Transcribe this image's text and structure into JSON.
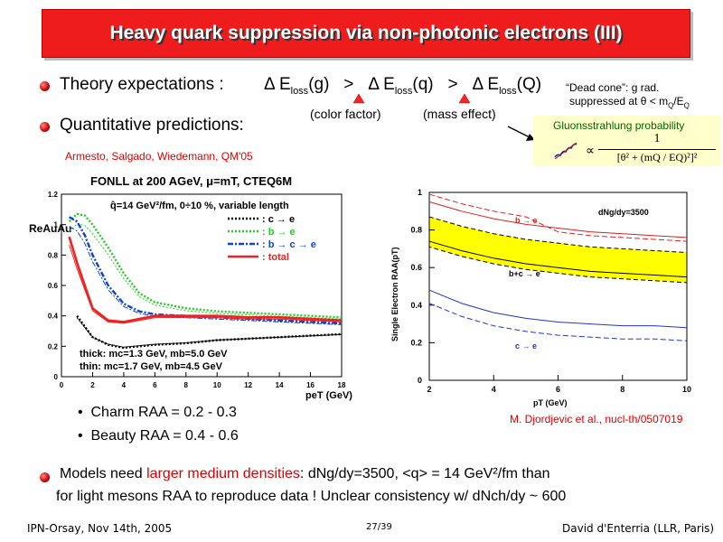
{
  "title": "Heavy quark suppression via non-photonic electrons (III)",
  "bullets": {
    "theory": "Theory expectations :",
    "quant": "Quantitative predictions:"
  },
  "eloss": {
    "delta": "Δ",
    "E": "E",
    "sub": "loss",
    "g": "(g)",
    "q": "(q)",
    "Q": "(Q)",
    "gt": ">",
    "color_factor": "(color factor)",
    "mass_effect": "(mass effect)"
  },
  "dead_cone": {
    "line1": "“Dead cone”: g rad.",
    "line2": "suppressed at θ < m",
    "q": "Q",
    "slash": "/E",
    "Q": "Q"
  },
  "gluon_box": {
    "title": "Gluonsstrahlung probability",
    "numerator": "1",
    "denominator": "[θ² + (mQ / EQ)²]²",
    "propto": "∝"
  },
  "citations": {
    "armesto": "Armesto, Salgado, Wiedemann, QM'05",
    "djordjevic": "M. Djordjevic et al., nucl-th/0507019"
  },
  "left_plot": {
    "title": "FONLL at 200 AGeV, μ=mT, CTEQ6M",
    "qhat": "q̂=14 GeV²/fm, 0÷10 %, variable length",
    "ylabel": "ReAuAu",
    "xlabel": "peT (GeV)",
    "legend": [
      {
        "label": ": c → e",
        "color": "#000000"
      },
      {
        "label": ": b → e",
        "color": "#22cc22"
      },
      {
        "label": ": b → c → e",
        "color": "#1144cc"
      },
      {
        "label": ": total",
        "color": "#ee2222"
      }
    ],
    "thick": "thick: mc=1.3 GeV, mb=5.0 GeV",
    "thin": "thin: mc=1.7 GeV, mb=4.5 GeV",
    "xticks": [
      "0",
      "2",
      "4",
      "6",
      "8",
      "10",
      "12",
      "14",
      "16",
      "18"
    ],
    "yticks": [
      "0",
      "0.2",
      "0.4",
      "0.6",
      "0.8",
      "1",
      "1.2"
    ]
  },
  "right_plot": {
    "ylabel": "Single Electron RAA(pT)",
    "xlabel": "pT (GeV)",
    "xticks": [
      "2",
      "4",
      "6",
      "8",
      "10"
    ],
    "yticks": [
      "0",
      "0.2",
      "0.4",
      "0.6",
      "0.8",
      "1"
    ],
    "dndy": "dNg/dy=3500",
    "b_e": "b → e",
    "bc_e": "b+c → e",
    "c_e": "c → e"
  },
  "results": {
    "charm": "Charm RAA = 0.2 - 0.3",
    "beauty": "Beauty RAA = 0.4 - 0.6"
  },
  "models": {
    "pre": "Models need ",
    "highlight": "larger medium densities",
    "post": ": dNg/dy=3500, <q> = 14 GeV²/fm than",
    "line2": "for light mesons RAA to reproduce data !  Unclear consistency w/ dNch/dy ~ 600"
  },
  "footer": {
    "left": "IPN-Orsay, Nov 14th, 2005",
    "center": "27/39",
    "right": "David d'Enterria (LLR, Paris)"
  },
  "chart_data": [
    {
      "type": "line",
      "title": "FONLL at 200 AGeV, μ=mT, CTEQ6M",
      "xlabel": "peT (GeV)",
      "ylabel": "ReAuAu",
      "xlim": [
        0,
        18
      ],
      "ylim": [
        0,
        1.2
      ],
      "series": [
        {
          "name": ": c → e",
          "x": [
            1,
            2,
            3,
            4,
            5,
            6,
            8,
            10,
            12,
            14,
            16,
            18
          ],
          "y": [
            0.4,
            0.26,
            0.21,
            0.19,
            0.2,
            0.21,
            0.22,
            0.24,
            0.25,
            0.26,
            0.27,
            0.28
          ]
        },
        {
          "name": ": b → e",
          "x": [
            0.5,
            1,
            1.5,
            2,
            3,
            4,
            5,
            6,
            8,
            10,
            12,
            14,
            16,
            18
          ],
          "y": [
            1.02,
            1.07,
            1.06,
            1.0,
            0.85,
            0.68,
            0.55,
            0.49,
            0.45,
            0.43,
            0.42,
            0.41,
            0.4,
            0.39
          ]
        },
        {
          "name": ": b → c → e",
          "x": [
            0.5,
            1,
            1.5,
            2,
            3,
            4,
            5,
            6,
            8,
            10,
            12,
            14,
            16,
            18
          ],
          "y": [
            1.05,
            1.02,
            0.93,
            0.8,
            0.6,
            0.48,
            0.43,
            0.41,
            0.4,
            0.39,
            0.38,
            0.37,
            0.36,
            0.35
          ]
        },
        {
          "name": ": total",
          "x": [
            0.5,
            1,
            2,
            3,
            4,
            5,
            6,
            8,
            10,
            12,
            14,
            16,
            18
          ],
          "y": [
            0.92,
            0.75,
            0.45,
            0.37,
            0.36,
            0.38,
            0.4,
            0.4,
            0.4,
            0.39,
            0.39,
            0.38,
            0.37
          ]
        }
      ]
    },
    {
      "type": "line",
      "xlabel": "pT (GeV)",
      "ylabel": "Single Electron RAA(pT)",
      "xlim": [
        2,
        10
      ],
      "ylim": [
        0,
        1
      ],
      "series": [
        {
          "name": "b → e",
          "x": [
            2,
            3,
            4,
            5,
            6,
            7,
            8,
            9,
            10
          ],
          "y": [
            0.95,
            0.9,
            0.86,
            0.83,
            0.81,
            0.79,
            0.78,
            0.77,
            0.76
          ]
        },
        {
          "name": "b+c → e",
          "x": [
            2,
            3,
            4,
            5,
            6,
            7,
            8,
            9,
            10
          ],
          "y": [
            0.74,
            0.69,
            0.65,
            0.62,
            0.6,
            0.58,
            0.57,
            0.56,
            0.55
          ]
        },
        {
          "name": "c → e",
          "x": [
            2,
            3,
            4,
            5,
            6,
            7,
            8,
            9,
            10
          ],
          "y": [
            0.48,
            0.41,
            0.36,
            0.33,
            0.31,
            0.3,
            0.29,
            0.29,
            0.28
          ]
        }
      ]
    }
  ]
}
